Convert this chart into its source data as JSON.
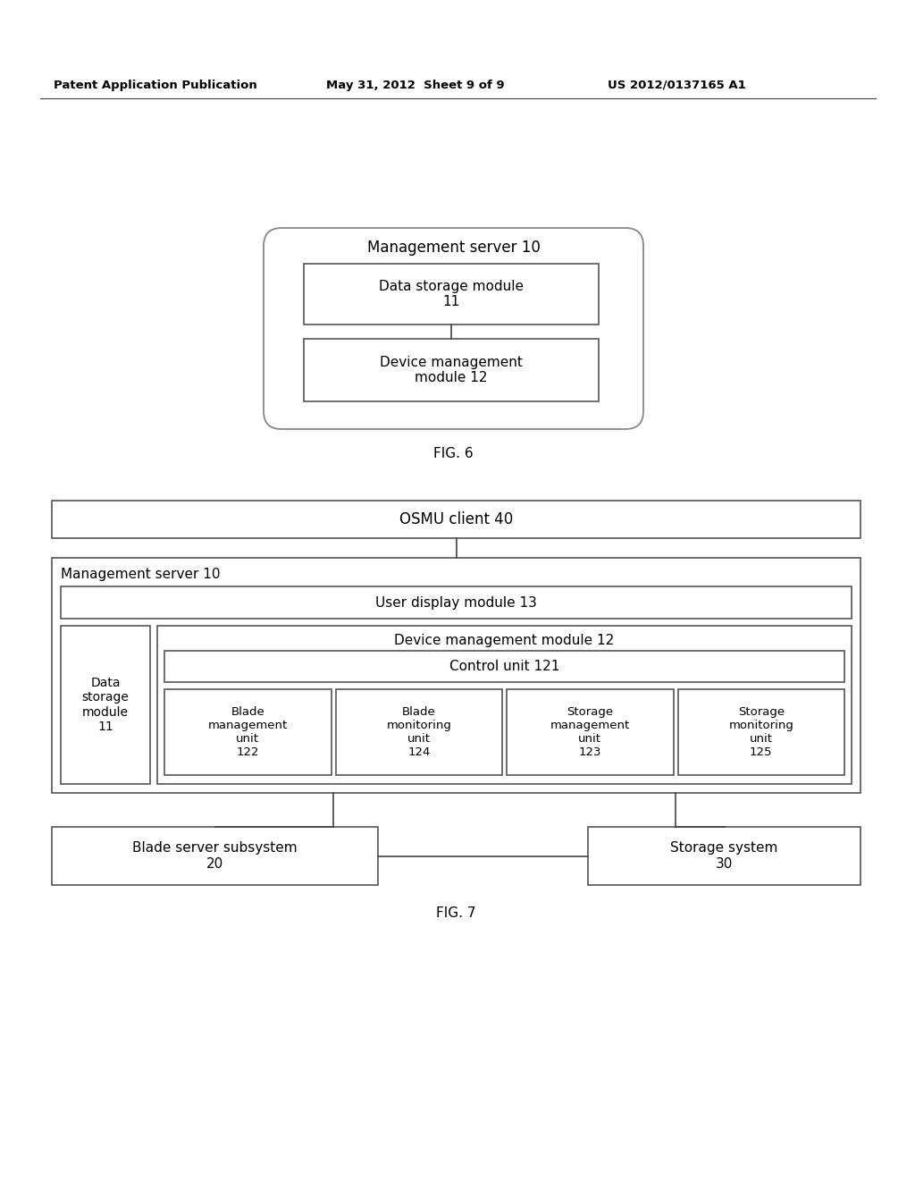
{
  "bg_color": "#ffffff",
  "text_color": "#000000",
  "header_text": "Patent Application Publication",
  "header_date": "May 31, 2012  Sheet 9 of 9",
  "header_patent": "US 2012/0137165 A1",
  "fig6_label": "FIG. 6",
  "fig7_label": "FIG. 7",
  "fig6": {
    "outer_label": "Management server 10",
    "box1_label": "Data storage module\n11",
    "box2_label": "Device management\nmodule 12"
  },
  "fig7": {
    "osmu_label": "OSMU client 40",
    "mgmt_label": "Management server 10",
    "user_display_label": "User display module 13",
    "dev_mgmt_label": "Device management module 12",
    "control_label": "Control unit 121",
    "data_storage_label": "Data\nstorage\nmodule\n11",
    "blade_mgmt_label": "Blade\nmanagement\nunit\n122",
    "blade_mon_label": "Blade\nmonitoring\nunit\n124",
    "storage_mgmt_label": "Storage\nmanagement\nunit\n123",
    "storage_mon_label": "Storage\nmonitoring\nunit\n125",
    "blade_server_label": "Blade server subsystem\n20",
    "storage_system_label": "Storage system\n30"
  }
}
